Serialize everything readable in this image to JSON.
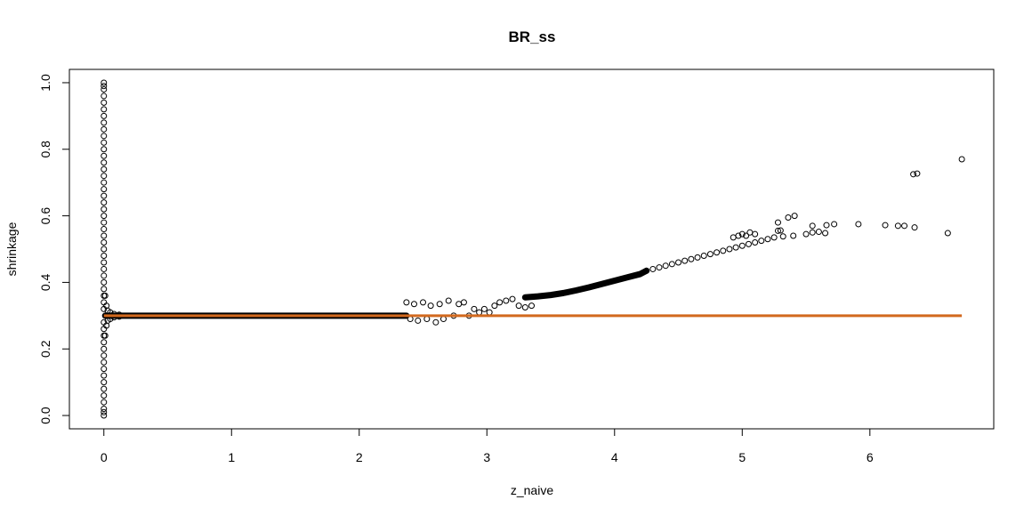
{
  "chart_data": {
    "type": "scatter",
    "title": "BR_ss",
    "xlabel": "z_naive",
    "ylabel": "shrinkage",
    "xlim": [
      -0.27,
      6.97
    ],
    "ylim": [
      -0.04,
      1.04
    ],
    "x_ticks": [
      0,
      1,
      2,
      3,
      4,
      5,
      6
    ],
    "y_ticks": [
      0.0,
      0.2,
      0.4,
      0.6,
      0.8,
      1.0
    ],
    "x_tick_labels": [
      "0",
      "1",
      "2",
      "3",
      "4",
      "5",
      "6"
    ],
    "y_tick_labels": [
      "0.0",
      "0.2",
      "0.4",
      "0.6",
      "0.8",
      "1.0"
    ],
    "grid": false,
    "point_color": "#000000",
    "reference_line": {
      "y": 0.3,
      "x_range": [
        0,
        6.72
      ],
      "color": "#d2691e"
    },
    "scatter_points": [
      [
        0,
        0.0
      ],
      [
        0,
        0.01
      ],
      [
        0,
        0.02
      ],
      [
        0,
        0.04
      ],
      [
        0,
        0.06
      ],
      [
        0,
        0.08
      ],
      [
        0,
        0.1
      ],
      [
        0,
        0.12
      ],
      [
        0,
        0.14
      ],
      [
        0,
        0.16
      ],
      [
        0,
        0.18
      ],
      [
        0,
        0.2
      ],
      [
        0,
        0.22
      ],
      [
        0,
        0.24
      ],
      [
        0,
        0.26
      ],
      [
        0,
        0.28
      ],
      [
        0,
        0.32
      ],
      [
        0,
        0.34
      ],
      [
        0,
        0.36
      ],
      [
        0,
        0.38
      ],
      [
        0,
        0.4
      ],
      [
        0,
        0.42
      ],
      [
        0,
        0.44
      ],
      [
        0,
        0.46
      ],
      [
        0,
        0.48
      ],
      [
        0,
        0.5
      ],
      [
        0,
        0.52
      ],
      [
        0,
        0.54
      ],
      [
        0,
        0.56
      ],
      [
        0,
        0.58
      ],
      [
        0,
        0.6
      ],
      [
        0,
        0.62
      ],
      [
        0,
        0.64
      ],
      [
        0,
        0.66
      ],
      [
        0,
        0.68
      ],
      [
        0,
        0.7
      ],
      [
        0,
        0.72
      ],
      [
        0,
        0.74
      ],
      [
        0,
        0.76
      ],
      [
        0,
        0.78
      ],
      [
        0,
        0.8
      ],
      [
        0,
        0.82
      ],
      [
        0,
        0.84
      ],
      [
        0,
        0.86
      ],
      [
        0,
        0.88
      ],
      [
        0,
        0.9
      ],
      [
        0,
        0.92
      ],
      [
        0,
        0.94
      ],
      [
        0,
        0.96
      ],
      [
        0,
        0.98
      ],
      [
        0,
        0.99
      ],
      [
        0,
        1.0
      ],
      [
        0.01,
        0.36
      ],
      [
        0.01,
        0.24
      ],
      [
        0.02,
        0.33
      ],
      [
        0.02,
        0.27
      ],
      [
        0.03,
        0.315
      ],
      [
        0.03,
        0.285
      ],
      [
        0.05,
        0.31
      ],
      [
        0.05,
        0.29
      ],
      [
        0.08,
        0.305
      ],
      [
        0.08,
        0.295
      ],
      [
        0.12,
        0.303
      ],
      [
        0.12,
        0.297
      ],
      [
        2.37,
        0.34
      ],
      [
        2.4,
        0.29
      ],
      [
        2.43,
        0.335
      ],
      [
        2.46,
        0.285
      ],
      [
        2.5,
        0.34
      ],
      [
        2.53,
        0.29
      ],
      [
        2.56,
        0.33
      ],
      [
        2.6,
        0.28
      ],
      [
        2.63,
        0.335
      ],
      [
        2.66,
        0.29
      ],
      [
        2.7,
        0.345
      ],
      [
        2.74,
        0.3
      ],
      [
        2.78,
        0.335
      ],
      [
        2.82,
        0.34
      ],
      [
        2.86,
        0.3
      ],
      [
        2.9,
        0.32
      ],
      [
        2.94,
        0.31
      ],
      [
        2.98,
        0.32
      ],
      [
        3.02,
        0.31
      ],
      [
        3.06,
        0.33
      ],
      [
        3.1,
        0.34
      ],
      [
        3.15,
        0.345
      ],
      [
        3.2,
        0.35
      ],
      [
        3.25,
        0.33
      ],
      [
        3.3,
        0.325
      ],
      [
        3.35,
        0.33
      ],
      [
        4.25,
        0.435
      ],
      [
        4.3,
        0.44
      ],
      [
        4.35,
        0.445
      ],
      [
        4.4,
        0.45
      ],
      [
        4.45,
        0.455
      ],
      [
        4.5,
        0.46
      ],
      [
        4.55,
        0.465
      ],
      [
        4.6,
        0.47
      ],
      [
        4.65,
        0.475
      ],
      [
        4.7,
        0.48
      ],
      [
        4.75,
        0.485
      ],
      [
        4.8,
        0.49
      ],
      [
        4.85,
        0.495
      ],
      [
        4.9,
        0.5
      ],
      [
        4.95,
        0.505
      ],
      [
        5.0,
        0.51
      ],
      [
        5.05,
        0.515
      ],
      [
        5.1,
        0.52
      ],
      [
        5.15,
        0.525
      ],
      [
        5.2,
        0.53
      ],
      [
        5.25,
        0.535
      ],
      [
        5.32,
        0.538
      ],
      [
        5.4,
        0.54
      ],
      [
        5.5,
        0.545
      ],
      [
        5.55,
        0.55
      ],
      [
        5.6,
        0.552
      ],
      [
        5.65,
        0.548
      ],
      [
        4.93,
        0.535
      ],
      [
        4.97,
        0.54
      ],
      [
        5.0,
        0.545
      ],
      [
        5.03,
        0.54
      ],
      [
        5.06,
        0.55
      ],
      [
        5.1,
        0.545
      ],
      [
        5.28,
        0.555
      ],
      [
        5.3,
        0.556
      ],
      [
        5.28,
        0.58
      ],
      [
        5.36,
        0.595
      ],
      [
        5.41,
        0.6
      ],
      [
        5.55,
        0.57
      ],
      [
        5.66,
        0.572
      ],
      [
        5.72,
        0.575
      ],
      [
        5.91,
        0.575
      ],
      [
        6.12,
        0.572
      ],
      [
        6.22,
        0.57
      ],
      [
        6.27,
        0.57
      ],
      [
        6.35,
        0.565
      ],
      [
        6.61,
        0.548
      ],
      [
        6.34,
        0.725
      ],
      [
        6.37,
        0.727
      ],
      [
        6.72,
        0.77
      ]
    ],
    "dense_segments": [
      {
        "x": [
          0.01,
          0.12
        ],
        "y": [
          0.3,
          0.3
        ]
      },
      {
        "x": [
          0.12,
          2.37
        ],
        "y": [
          0.3,
          0.3
        ]
      },
      {
        "x": [
          3.3,
          3.4,
          3.5,
          3.6,
          3.7,
          3.8,
          3.9,
          4.0,
          4.1,
          4.2,
          4.25
        ],
        "y": [
          0.355,
          0.358,
          0.362,
          0.368,
          0.376,
          0.385,
          0.395,
          0.405,
          0.415,
          0.425,
          0.435
        ]
      }
    ]
  }
}
